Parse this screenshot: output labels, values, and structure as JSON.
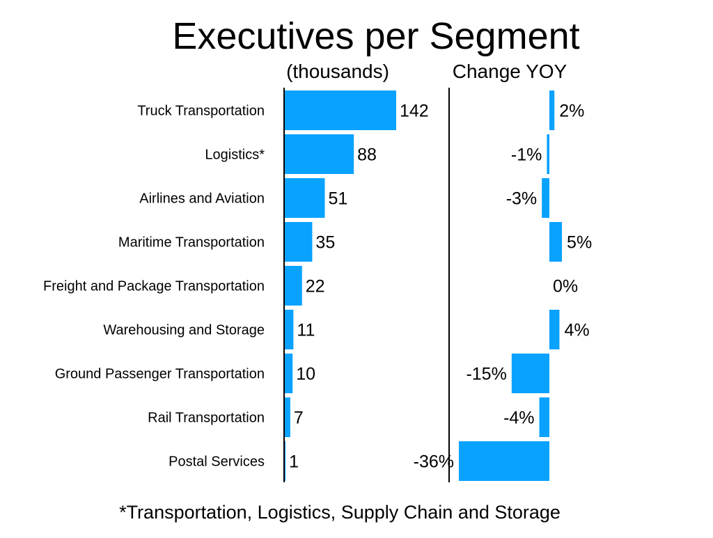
{
  "chart_data": {
    "type": "bar",
    "title": "Executives per Segment",
    "footnote": "*Transportation, Logistics, Supply Chain and Storage",
    "accent_color": "#0aa2ff",
    "categories": [
      "Truck Transportation",
      "Logistics*",
      "Airlines and Aviation",
      "Maritime Transportation",
      "Freight and Package Transportation",
      "Warehousing and Storage",
      "Ground Passenger Transportation",
      "Rail Transportation",
      "Postal Services"
    ],
    "series": [
      {
        "name": "(thousands)",
        "values": [
          142,
          88,
          51,
          35,
          22,
          11,
          10,
          7,
          1
        ],
        "labels": [
          "142",
          "88",
          "51",
          "35",
          "22",
          "11",
          "10",
          "7",
          "1"
        ]
      },
      {
        "name": "Change YOY",
        "values": [
          2,
          -1,
          -3,
          5,
          0,
          4,
          -15,
          -4,
          -36
        ],
        "labels": [
          "2%",
          "-1%",
          "-3%",
          "5%",
          "0%",
          "4%",
          "-15%",
          "-4%",
          "-36%"
        ]
      }
    ]
  }
}
